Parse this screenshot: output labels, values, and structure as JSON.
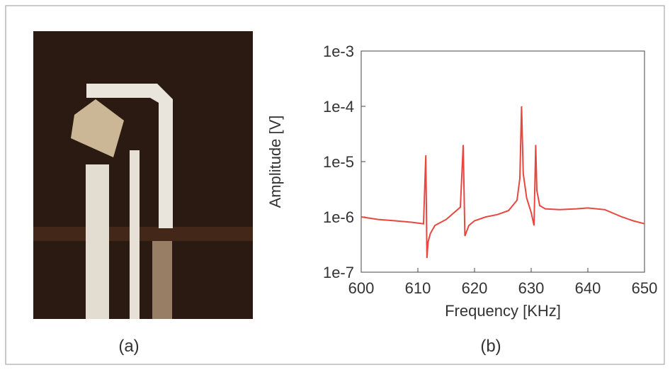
{
  "panel_a": {
    "caption": "(a)"
  },
  "chart_data": {
    "type": "line",
    "caption": "(b)",
    "xlabel": "Frequency [KHz]",
    "ylabel": "Amplitude [V]",
    "yscale": "log",
    "grid": false,
    "color": "#e8473f",
    "xlim": [
      600,
      650
    ],
    "xticks": [
      600,
      610,
      620,
      630,
      640,
      650
    ],
    "ylim": [
      1e-07,
      0.001
    ],
    "yticks": [
      {
        "value": 1e-07,
        "label": "1e-7"
      },
      {
        "value": 1e-06,
        "label": "1e-6"
      },
      {
        "value": 1e-05,
        "label": "1e-5"
      },
      {
        "value": 0.0001,
        "label": "1e-4"
      },
      {
        "value": 0.001,
        "label": "1e-3"
      }
    ],
    "x": [
      600,
      603,
      606,
      609,
      611,
      611.4,
      611.6,
      611.8,
      612.2,
      613,
      615,
      617.5,
      618,
      618.3,
      619,
      620,
      622,
      624,
      626,
      627.5,
      628,
      628.3,
      628.6,
      629.2,
      630,
      630.5,
      630.8,
      631,
      631.5,
      632.5,
      635,
      638,
      640,
      643,
      646,
      648,
      650
    ],
    "values": [
      1e-06,
      9e-07,
      8.5e-07,
      8e-07,
      7.5e-07,
      1.3e-05,
      1.8e-07,
      3.5e-07,
      5e-07,
      7e-07,
      9e-07,
      1.5e-06,
      2e-05,
      4.5e-07,
      7e-07,
      8.5e-07,
      1e-06,
      1.1e-06,
      1.3e-06,
      2e-06,
      5e-06,
      0.0001,
      6e-06,
      2.2e-06,
      1.2e-06,
      7e-07,
      2e-05,
      3e-06,
      1.6e-06,
      1.4e-06,
      1.35e-06,
      1.4e-06,
      1.45e-06,
      1.35e-06,
      1e-06,
      8.5e-07,
      7.5e-07
    ]
  }
}
